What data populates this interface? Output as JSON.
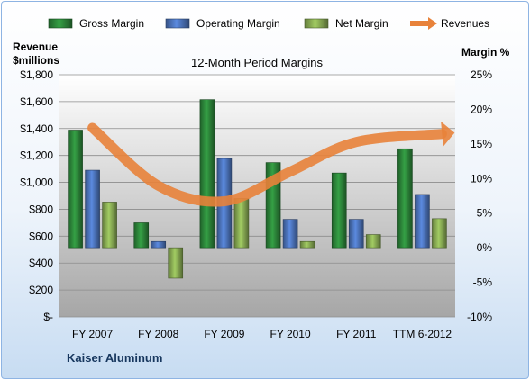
{
  "company": "Kaiser Aluminum",
  "chart_data": {
    "type": "bar",
    "title": "12-Month Period Margins",
    "categories": [
      "FY 2007",
      "FY 2008",
      "FY 2009",
      "FY 2010",
      "FY 2011",
      "TTM 6-2012"
    ],
    "y_left": {
      "label_line1": "Revenue",
      "label_line2": "$millions",
      "ylim": [
        0,
        1800
      ],
      "ticks": [
        "$-",
        "$200",
        "$400",
        "$600",
        "$800",
        "$1,000",
        "$1,200",
        "$1,400",
        "$1,600",
        "$1,800"
      ]
    },
    "y_right": {
      "label": "Margin %",
      "ylim": [
        -10,
        25
      ],
      "ticks": [
        "-10%",
        "-5%",
        "0%",
        "5%",
        "10%",
        "15%",
        "20%",
        "25%"
      ]
    },
    "series": [
      {
        "name": "Gross Margin",
        "axis": "right",
        "color": "#2e8b3c",
        "values": [
          17.0,
          3.6,
          21.4,
          12.3,
          10.8,
          14.3
        ]
      },
      {
        "name": "Operating Margin",
        "axis": "right",
        "color": "#4f78c2",
        "values": [
          11.2,
          0.9,
          12.9,
          4.1,
          4.1,
          7.7
        ]
      },
      {
        "name": "Net Margin",
        "axis": "right",
        "color": "#8db156",
        "values": [
          6.6,
          -4.4,
          7.1,
          0.9,
          1.9,
          4.2
        ]
      },
      {
        "name": "Revenues",
        "axis": "left",
        "color": "#e8823a",
        "type": "line",
        "values": [
          1405,
          975,
          860,
          1080,
          1300,
          1360
        ]
      }
    ],
    "legend_position": "top",
    "grid": true
  }
}
